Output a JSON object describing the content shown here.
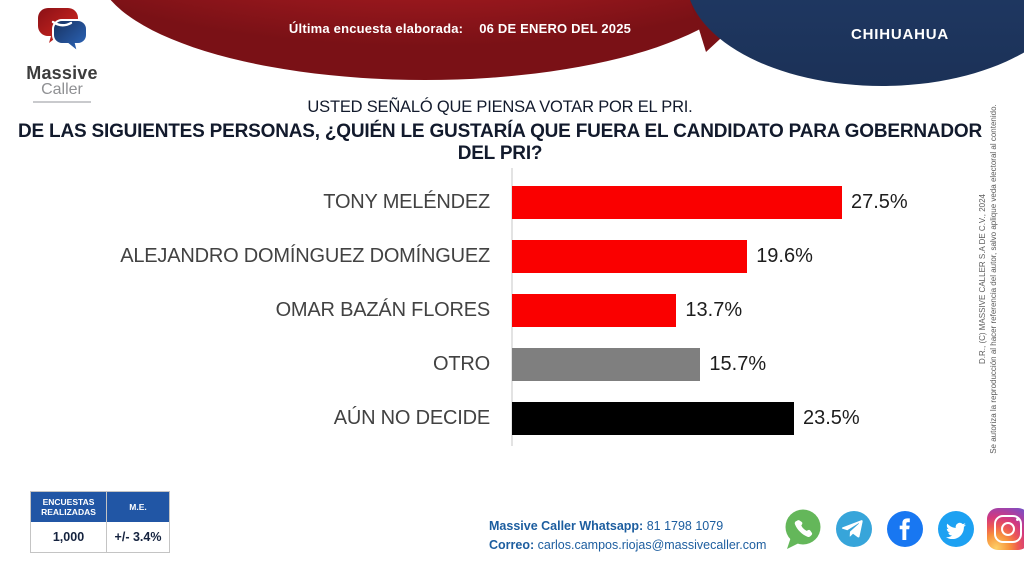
{
  "header": {
    "banner_label": "Última encuesta elaborada:",
    "banner_date": "06 DE ENERO DEL 2025",
    "region": "CHIHUAHUA"
  },
  "logo": {
    "line1": "Massive",
    "line2": "Caller"
  },
  "title": {
    "line1": "USTED SEÑALÓ QUE PIENSA VOTAR POR EL PRI.",
    "line2": "DE LAS SIGUIENTES PERSONAS, ¿QUIÉN LE GUSTARÍA QUE FUERA EL CANDIDATO PARA GOBERNADOR DEL PRI?"
  },
  "chart_data": {
    "type": "bar",
    "orientation": "horizontal",
    "title": "Candidato preferido para gobernador del PRI",
    "categories": [
      "TONY MELÉNDEZ",
      "ALEJANDRO DOMÍNGUEZ DOMÍNGUEZ",
      "OMAR BAZÁN FLORES",
      "OTRO",
      "AÚN NO DECIDE"
    ],
    "values": [
      27.5,
      19.6,
      13.7,
      15.7,
      23.5
    ],
    "value_labels": [
      "27.5%",
      "19.6%",
      "13.7%",
      "15.7%",
      "23.5%"
    ],
    "bar_colors": [
      "#fa0000",
      "#fa0000",
      "#fa0000",
      "#7f7f7f",
      "#000000"
    ],
    "xlim": [
      0,
      30
    ],
    "grid": false,
    "legend": "none"
  },
  "stats_table": {
    "col1_header": "ENCUESTAS REALIZADAS",
    "col2_header": "M.E.",
    "col1_value": "1,000",
    "col2_value": "+/- 3.4%"
  },
  "contact": {
    "whatsapp_label": "Massive Caller Whatsapp:",
    "whatsapp_number": "81 1798 1079",
    "email_label": "Correo:",
    "email": "carlos.campos.riojas@massivecaller.com"
  },
  "social_icons": [
    "whatsapp",
    "telegram",
    "facebook",
    "twitter",
    "instagram"
  ],
  "copyright": {
    "line1": "D.R., (C) MASSIVE CALLER S.A DE C.V., 2024",
    "line2": "Se autoriza la reproducción al hacer referencia del autor, salvo aplique veda electoral al contenido."
  },
  "colors": {
    "banner_red": "#c02026",
    "banner_red_dark": "#7a1116",
    "banner_blue": "#1e3a66",
    "accent_red": "#fa0000",
    "table_header_blue": "#2156a5",
    "contact_blue": "#1c5d9f"
  }
}
